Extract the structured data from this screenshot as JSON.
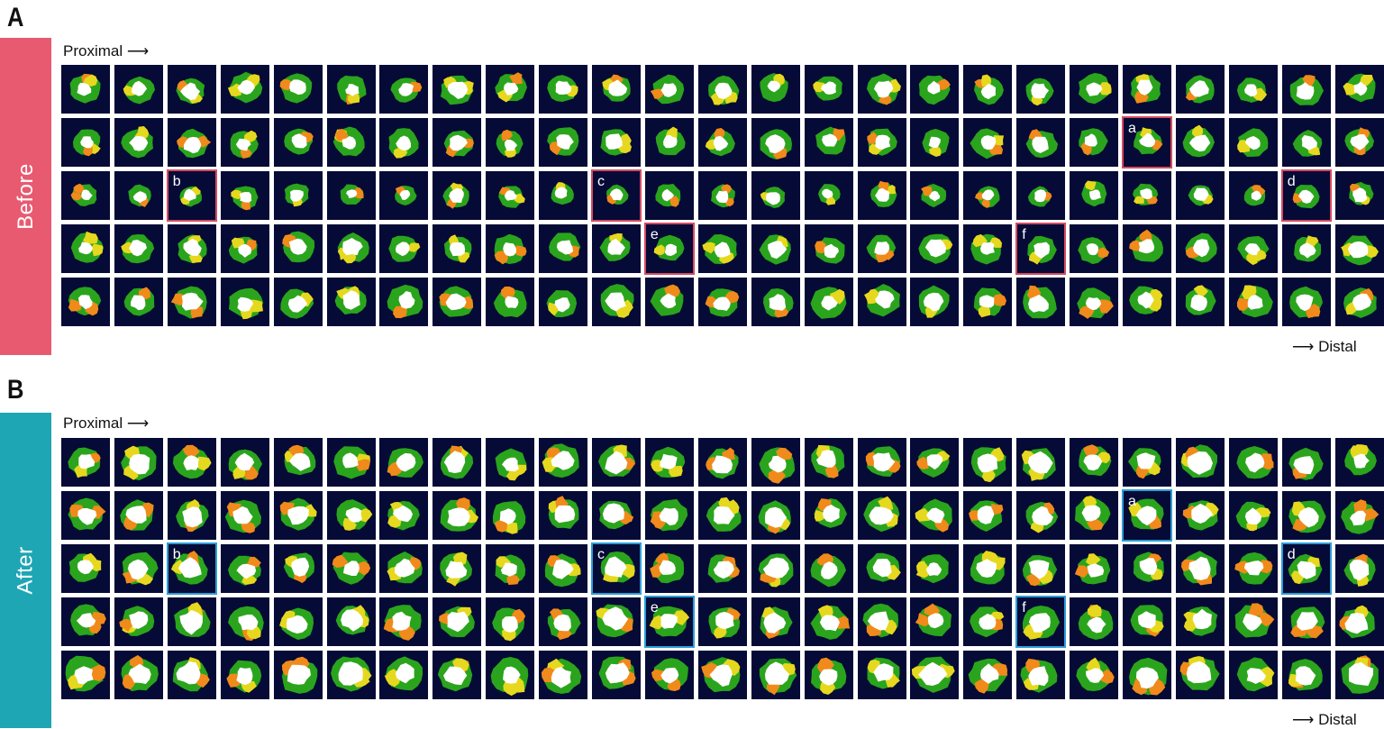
{
  "panels": [
    {
      "letter": "A",
      "side_label": "Before",
      "side_color": "#e85a70",
      "box_color": "#d64b62",
      "proximal_label": "Proximal ⟶",
      "distal_label": "⟶ Distal",
      "rows": 5,
      "cols": 25,
      "highlights": [
        {
          "label": "a",
          "row": 1,
          "col": 20
        },
        {
          "label": "b",
          "row": 2,
          "col": 2
        },
        {
          "label": "c",
          "row": 2,
          "col": 10
        },
        {
          "label": "d",
          "row": 2,
          "col": 23
        },
        {
          "label": "e",
          "row": 3,
          "col": 11
        },
        {
          "label": "f",
          "row": 3,
          "col": 18
        }
      ]
    },
    {
      "letter": "B",
      "side_label": "After",
      "side_color": "#1ea6b4",
      "box_color": "#2b9ed8",
      "proximal_label": "Proximal ⟶",
      "distal_label": "⟶ Distal",
      "rows": 5,
      "cols": 25,
      "highlights": [
        {
          "label": "a",
          "row": 1,
          "col": 20
        },
        {
          "label": "b",
          "row": 2,
          "col": 2
        },
        {
          "label": "c",
          "row": 2,
          "col": 10
        },
        {
          "label": "d",
          "row": 2,
          "col": 23
        },
        {
          "label": "e",
          "row": 3,
          "col": 11
        },
        {
          "label": "f",
          "row": 3,
          "col": 18
        }
      ]
    }
  ],
  "colors": {
    "tile_background": "#050a36",
    "vessel_wall": "#2aa41c",
    "plaque_yellow": "#e6d81e",
    "plaque_orange": "#f08a1a",
    "lumen": "#ffffff"
  }
}
